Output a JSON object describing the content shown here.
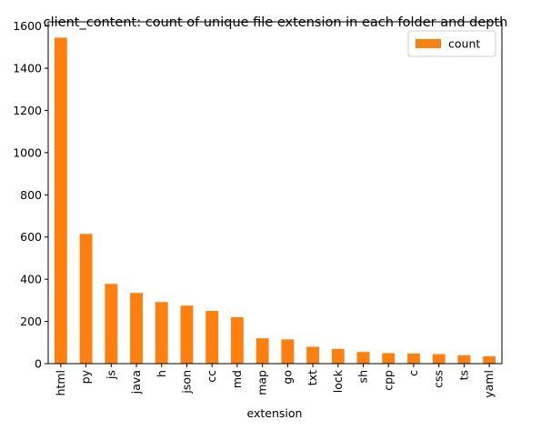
{
  "chart_data": {
    "type": "bar",
    "title": "client_content: count of unique file extension in each folder and depth",
    "xlabel": "extension",
    "ylabel": "",
    "categories": [
      "html",
      "py",
      "js",
      "java",
      "h",
      "json",
      "cc",
      "md",
      "map",
      "go",
      "txt",
      "lock",
      "sh",
      "cpp",
      "c",
      "css",
      "ts",
      "yaml"
    ],
    "series": [
      {
        "name": "count",
        "values": [
          1545,
          615,
          378,
          335,
          292,
          275,
          250,
          220,
          120,
          115,
          80,
          70,
          55,
          50,
          48,
          45,
          40,
          35
        ]
      }
    ],
    "ylim": [
      0,
      1620
    ],
    "yticks": [
      0,
      200,
      400,
      600,
      800,
      1000,
      1200,
      1400,
      1600
    ],
    "grid": false,
    "legend": {
      "position": "top-right",
      "entries": [
        "count"
      ]
    },
    "colors": {
      "bar": "#ff7f0e",
      "axis": "#000000"
    }
  }
}
